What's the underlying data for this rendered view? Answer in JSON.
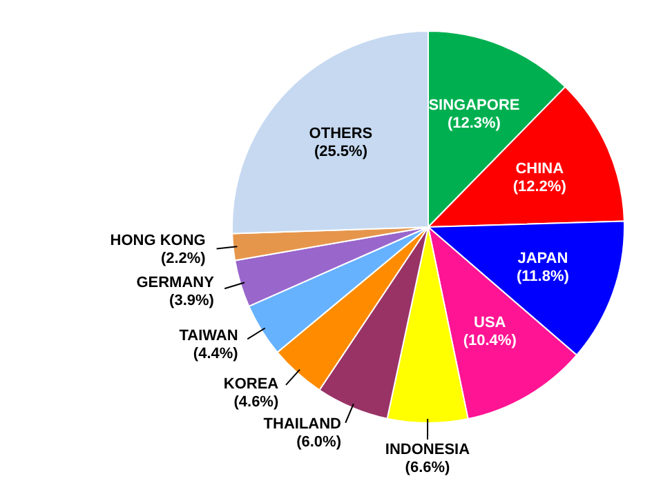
{
  "chart_data": {
    "type": "pie",
    "categories": [
      "SINGAPORE",
      "CHINA",
      "JAPAN",
      "USA",
      "INDONESIA",
      "THAILAND",
      "KOREA",
      "TAIWAN",
      "GERMANY",
      "HONG KONG",
      "OTHERS"
    ],
    "values": [
      12.3,
      12.2,
      11.8,
      10.4,
      6.6,
      6.0,
      4.6,
      4.4,
      3.9,
      2.2,
      25.5
    ],
    "value_labels": [
      "(12.3%)",
      "(12.2%)",
      "(11.8%)",
      "(10.4%)",
      "(6.6%)",
      "(6.0%)",
      "(4.6%)",
      "(4.4%)",
      "(3.9%)",
      "(2.2%)",
      "(25.5%)"
    ],
    "colors": [
      "#00b050",
      "#ff0000",
      "#0000ff",
      "#ff1493",
      "#ffff00",
      "#993366",
      "#ff8c00",
      "#66b2ff",
      "#9966cc",
      "#e6964b",
      "#c6d9f1"
    ],
    "legend": false
  }
}
